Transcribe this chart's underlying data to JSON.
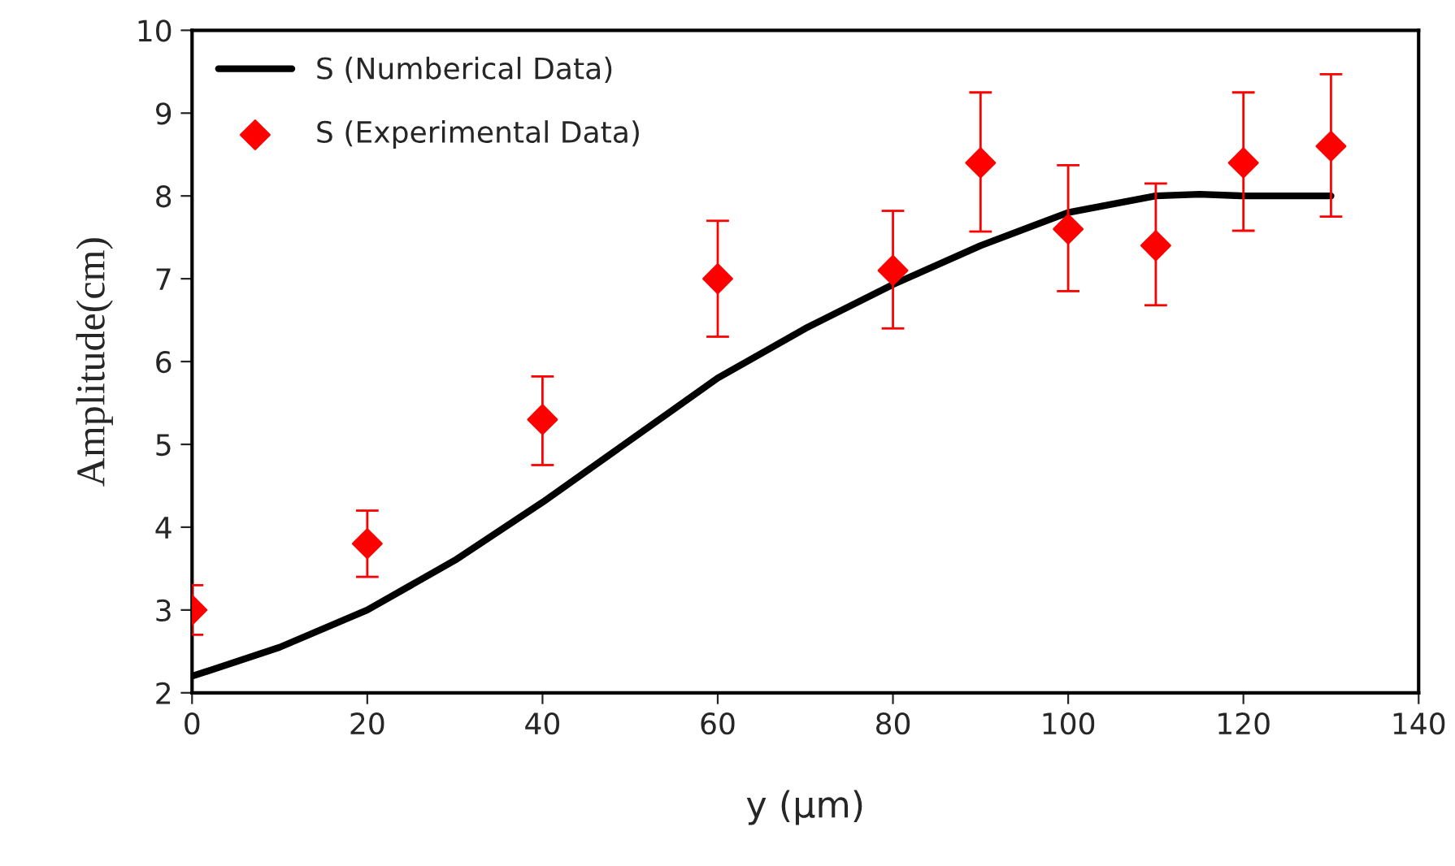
{
  "chart_data": {
    "type": "line",
    "xlabel": "y (µm)",
    "ylabel": "Amplitude(cm)",
    "xlim": [
      0,
      140
    ],
    "ylim": [
      2,
      10
    ],
    "xticks": [
      0,
      20,
      40,
      60,
      80,
      100,
      120,
      140
    ],
    "yticks": [
      2,
      3,
      4,
      5,
      6,
      7,
      8,
      9,
      10
    ],
    "grid": false,
    "legend": "top left",
    "series": [
      {
        "name": "S (Numberical Data)",
        "color": "#000000",
        "marker": "none",
        "line_style": "solid",
        "x": [
          0,
          10,
          20,
          30,
          40,
          50,
          60,
          70,
          80,
          90,
          100,
          110,
          115,
          120,
          130
        ],
        "values": [
          2.2,
          2.55,
          3.0,
          3.6,
          4.3,
          5.05,
          5.8,
          6.4,
          6.93,
          7.4,
          7.8,
          8.0,
          8.02,
          8.0,
          8.0
        ]
      },
      {
        "name": "S (Experimental Data)",
        "type": "scatter",
        "color": "#ff0000",
        "marker": "diamond",
        "x": [
          0,
          20,
          40,
          60,
          80,
          90,
          100,
          110,
          120,
          130
        ],
        "values": [
          3.0,
          3.8,
          5.3,
          7.0,
          7.1,
          8.4,
          7.6,
          7.4,
          8.4,
          8.6
        ],
        "errors": [
          [
            2.7,
            3.3
          ],
          [
            3.4,
            4.2
          ],
          [
            4.75,
            5.82
          ],
          [
            6.3,
            7.7
          ],
          [
            6.4,
            7.82
          ],
          [
            7.57,
            9.25
          ],
          [
            6.85,
            8.37
          ],
          [
            6.68,
            8.15
          ],
          [
            7.58,
            9.25
          ],
          [
            7.75,
            9.47
          ]
        ]
      }
    ]
  }
}
